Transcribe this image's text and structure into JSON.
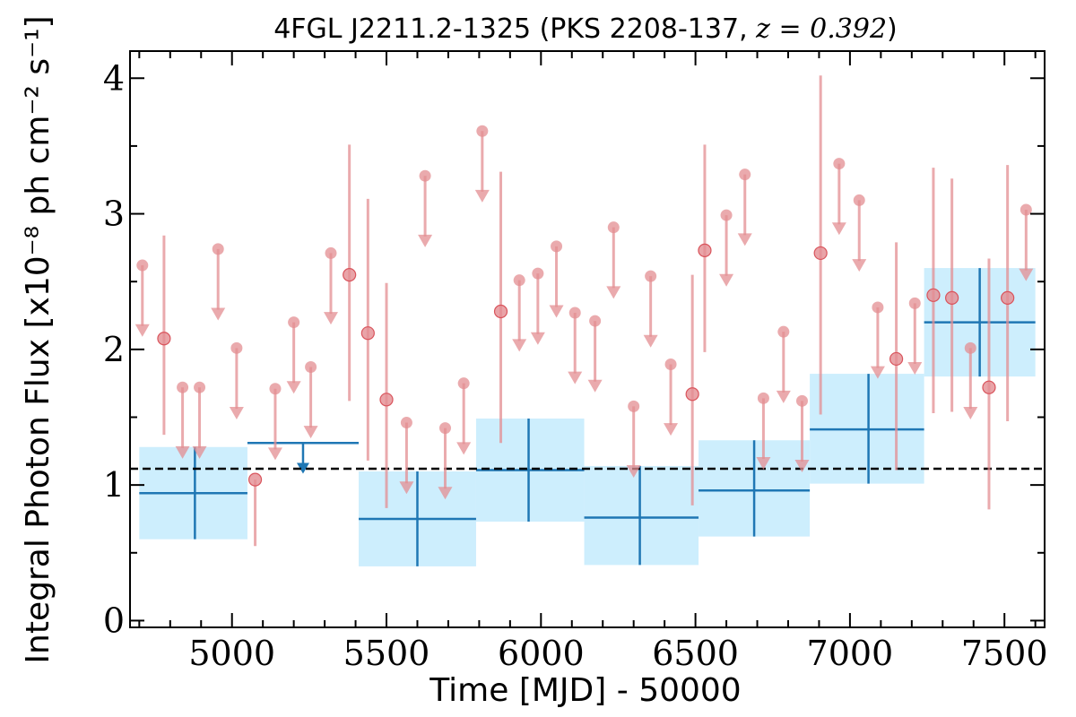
{
  "chart_data": {
    "type": "scatter",
    "title": "4FGL J2211.2-1325 (PKS 2208-137, z = 0.392)",
    "title_parts": {
      "prefix": "4FGL J2211.2-1325 (PKS 2208-137, ",
      "math": "z = 0.392",
      "suffix": ")"
    },
    "xlabel": "Time [MJD] - 50000",
    "ylabel": "Integral Photon Flux [x10⁻⁸ ph cm⁻² s⁻¹]",
    "xlim": [
      4670,
      7630
    ],
    "ylim": [
      -0.05,
      4.2
    ],
    "x_ticks": [
      5000,
      5500,
      6000,
      6500,
      7000,
      7500
    ],
    "y_ticks": [
      0,
      1,
      2,
      3,
      4
    ],
    "grid": false,
    "legend": null,
    "reference_line": {
      "y": 1.12,
      "style": "dashed",
      "color": "#000000"
    },
    "colors": {
      "short_bin": "#e38d92",
      "long_bin_line": "#1f77b4",
      "long_bin_fill": "#cdeefd"
    },
    "series": [
      {
        "kind": "short_bin_detections",
        "points": [
          {
            "x": 4780,
            "y": 2.08,
            "ylo": 1.37,
            "yhi": 2.84
          },
          {
            "x": 5075,
            "y": 1.04,
            "ylo": 0.55,
            "yhi": 1.04
          },
          {
            "x": 5380,
            "y": 2.55,
            "ylo": 1.62,
            "yhi": 3.51
          },
          {
            "x": 5440,
            "y": 2.12,
            "ylo": 1.18,
            "yhi": 3.11
          },
          {
            "x": 5500,
            "y": 1.63,
            "ylo": 0.83,
            "yhi": 2.49
          },
          {
            "x": 5870,
            "y": 2.28,
            "ylo": 1.31,
            "yhi": 3.31
          },
          {
            "x": 6490,
            "y": 1.67,
            "ylo": 0.85,
            "yhi": 2.55
          },
          {
            "x": 6530,
            "y": 2.73,
            "ylo": 1.98,
            "yhi": 3.51
          },
          {
            "x": 6905,
            "y": 2.71,
            "ylo": 1.52,
            "yhi": 4.02
          },
          {
            "x": 7150,
            "y": 1.93,
            "ylo": 1.11,
            "yhi": 2.79
          },
          {
            "x": 7270,
            "y": 2.4,
            "ylo": 1.53,
            "yhi": 3.34
          },
          {
            "x": 7330,
            "y": 2.38,
            "ylo": 1.54,
            "yhi": 3.26
          },
          {
            "x": 7450,
            "y": 1.72,
            "ylo": 0.82,
            "yhi": 2.67
          },
          {
            "x": 7510,
            "y": 2.38,
            "ylo": 1.47,
            "yhi": 3.36
          }
        ]
      },
      {
        "kind": "short_bin_upper_limits",
        "points": [
          {
            "x": 4710,
            "y": 2.62
          },
          {
            "x": 4840,
            "y": 1.72
          },
          {
            "x": 4895,
            "y": 1.72
          },
          {
            "x": 4955,
            "y": 2.74
          },
          {
            "x": 5015,
            "y": 2.01
          },
          {
            "x": 5140,
            "y": 1.71
          },
          {
            "x": 5200,
            "y": 2.2
          },
          {
            "x": 5255,
            "y": 1.87
          },
          {
            "x": 5320,
            "y": 2.71
          },
          {
            "x": 5565,
            "y": 1.46
          },
          {
            "x": 5625,
            "y": 3.28
          },
          {
            "x": 5690,
            "y": 1.42
          },
          {
            "x": 5750,
            "y": 1.75
          },
          {
            "x": 5810,
            "y": 3.61
          },
          {
            "x": 5930,
            "y": 2.51
          },
          {
            "x": 5990,
            "y": 2.56
          },
          {
            "x": 6050,
            "y": 2.76
          },
          {
            "x": 6110,
            "y": 2.27
          },
          {
            "x": 6175,
            "y": 2.21
          },
          {
            "x": 6235,
            "y": 2.9
          },
          {
            "x": 6300,
            "y": 1.58
          },
          {
            "x": 6355,
            "y": 2.54
          },
          {
            "x": 6420,
            "y": 1.89
          },
          {
            "x": 6600,
            "y": 2.99
          },
          {
            "x": 6660,
            "y": 3.29
          },
          {
            "x": 6720,
            "y": 1.64
          },
          {
            "x": 6785,
            "y": 2.13
          },
          {
            "x": 6845,
            "y": 1.62
          },
          {
            "x": 6965,
            "y": 3.37
          },
          {
            "x": 7030,
            "y": 3.1
          },
          {
            "x": 7090,
            "y": 2.31
          },
          {
            "x": 7210,
            "y": 2.34
          },
          {
            "x": 7390,
            "y": 2.01
          },
          {
            "x": 7570,
            "y": 3.03
          }
        ]
      },
      {
        "kind": "long_bin_detections",
        "points": [
          {
            "x": 4880,
            "x0": 4700,
            "x1": 5050,
            "y": 0.94,
            "ylo": 0.6,
            "yhi": 1.28
          },
          {
            "x": 5600,
            "x0": 5410,
            "x1": 5790,
            "y": 0.75,
            "ylo": 0.4,
            "yhi": 1.1
          },
          {
            "x": 5960,
            "x0": 5790,
            "x1": 6140,
            "y": 1.11,
            "ylo": 0.73,
            "yhi": 1.49
          },
          {
            "x": 6320,
            "x0": 6140,
            "x1": 6510,
            "y": 0.76,
            "ylo": 0.41,
            "yhi": 1.14
          },
          {
            "x": 6690,
            "x0": 6510,
            "x1": 6870,
            "y": 0.96,
            "ylo": 0.62,
            "yhi": 1.33
          },
          {
            "x": 7060,
            "x0": 6870,
            "x1": 7240,
            "y": 1.41,
            "ylo": 1.01,
            "yhi": 1.82
          },
          {
            "x": 7420,
            "x0": 7240,
            "x1": 7600,
            "y": 2.2,
            "ylo": 1.8,
            "yhi": 2.6
          }
        ]
      },
      {
        "kind": "long_bin_upper_limits",
        "points": [
          {
            "x": 5230,
            "x0": 5050,
            "x1": 5410,
            "y": 1.31,
            "arrow_to": 1.11
          }
        ]
      }
    ]
  }
}
